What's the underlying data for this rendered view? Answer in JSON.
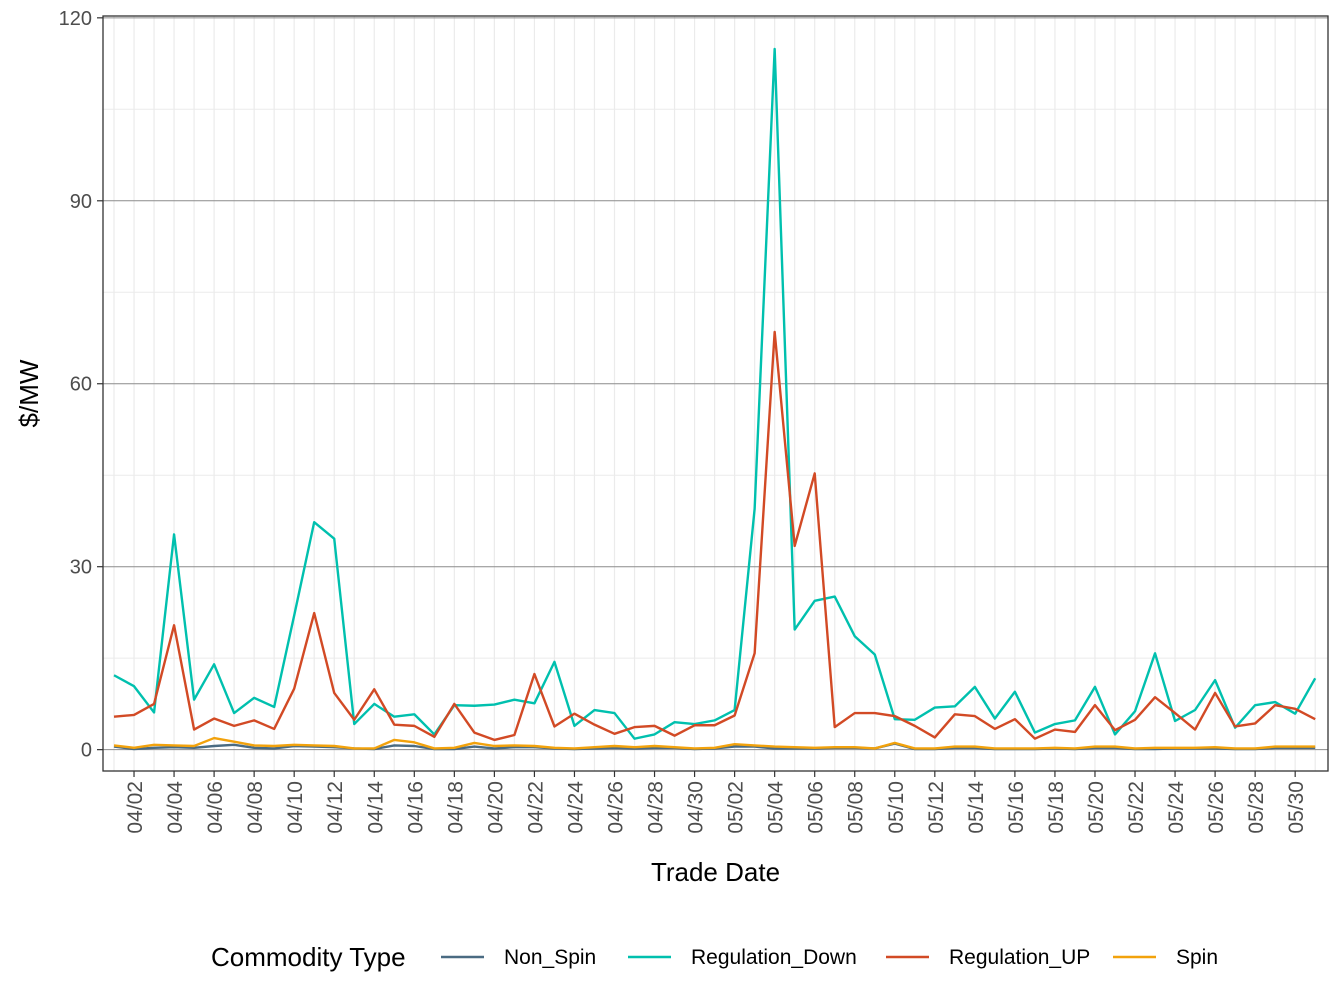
{
  "chart_data": {
    "type": "line",
    "xlabel": "Trade Date",
    "ylabel": "$/MW",
    "ylim": [
      -3.5,
      120.3
    ],
    "yticks": [
      0,
      30,
      60,
      90,
      120
    ],
    "grid": true,
    "legend_position": "bottom",
    "legend_title": "Commodity Type",
    "x": [
      "04/01",
      "04/02",
      "04/03",
      "04/04",
      "04/05",
      "04/06",
      "04/07",
      "04/08",
      "04/09",
      "04/10",
      "04/11",
      "04/12",
      "04/13",
      "04/14",
      "04/15",
      "04/16",
      "04/17",
      "04/18",
      "04/19",
      "04/20",
      "04/21",
      "04/22",
      "04/23",
      "04/24",
      "04/25",
      "04/26",
      "04/27",
      "04/28",
      "04/29",
      "04/30",
      "05/01",
      "05/02",
      "05/03",
      "05/04",
      "05/05",
      "05/06",
      "05/07",
      "05/08",
      "05/09",
      "05/10",
      "05/11",
      "05/12",
      "05/13",
      "05/14",
      "05/15",
      "05/16",
      "05/17",
      "05/18",
      "05/19",
      "05/20",
      "05/21",
      "05/22",
      "05/23",
      "05/24",
      "05/25",
      "05/26",
      "05/27",
      "05/28",
      "05/29",
      "05/30",
      "05/31"
    ],
    "x_tick_labels": [
      "04/02",
      "04/04",
      "04/06",
      "04/08",
      "04/10",
      "04/12",
      "04/14",
      "04/16",
      "04/18",
      "04/20",
      "04/22",
      "04/24",
      "04/26",
      "04/28",
      "04/30",
      "05/02",
      "05/04",
      "05/06",
      "05/08",
      "05/10",
      "05/12",
      "05/14",
      "05/16",
      "05/18",
      "05/20",
      "05/22",
      "05/24",
      "05/26",
      "05/28",
      "05/30"
    ],
    "series": [
      {
        "name": "Non_Spin",
        "color": "#4a6b82",
        "values": [
          0.5,
          0.1,
          0.3,
          0.4,
          0.3,
          0.6,
          0.8,
          0.3,
          0.2,
          0.6,
          0.5,
          0.4,
          0.2,
          0.1,
          0.7,
          0.6,
          0.1,
          0.1,
          0.5,
          0.2,
          0.4,
          0.4,
          0.2,
          0.1,
          0.2,
          0.3,
          0.2,
          0.3,
          0.3,
          0.1,
          0.2,
          0.5,
          0.5,
          0.2,
          0.2,
          0.2,
          0.3,
          0.3,
          0.2,
          1.0,
          0.1,
          0.1,
          0.3,
          0.3,
          0.1,
          0.1,
          0.1,
          0.2,
          0.1,
          0.3,
          0.3,
          0.1,
          0.1,
          0.2,
          0.2,
          0.2,
          0.1,
          0.1,
          0.3,
          0.3,
          0.3
        ]
      },
      {
        "name": "Regulation_Down",
        "color": "#00c0ae",
        "values": [
          12.2,
          10.4,
          6.1,
          35.3,
          8.2,
          14.0,
          6.0,
          8.5,
          7.0,
          22.0,
          37.3,
          34.6,
          4.2,
          7.5,
          5.4,
          5.8,
          2.5,
          7.3,
          7.2,
          7.4,
          8.2,
          7.6,
          14.4,
          3.9,
          6.5,
          6.0,
          1.8,
          2.5,
          4.5,
          4.2,
          4.8,
          6.5,
          39.5,
          114.9,
          19.7,
          24.4,
          25.1,
          18.6,
          15.6,
          5.0,
          4.9,
          6.9,
          7.1,
          10.3,
          5.1,
          9.5,
          2.8,
          4.2,
          4.8,
          10.3,
          2.5,
          6.3,
          15.8,
          4.7,
          6.5,
          11.4,
          3.6,
          7.3,
          7.8,
          5.9,
          11.7
        ]
      },
      {
        "name": "Regulation_UP",
        "color": "#d24a25",
        "values": [
          5.4,
          5.7,
          7.5,
          20.4,
          3.3,
          5.1,
          3.9,
          4.8,
          3.4,
          10.0,
          22.4,
          9.3,
          4.9,
          9.9,
          4.1,
          3.9,
          2.1,
          7.5,
          2.8,
          1.6,
          2.4,
          12.4,
          3.8,
          5.9,
          4.1,
          2.6,
          3.7,
          3.9,
          2.3,
          4.0,
          4.0,
          5.6,
          15.8,
          68.5,
          33.4,
          45.3,
          3.7,
          6.0,
          6.0,
          5.5,
          3.9,
          2.0,
          5.8,
          5.5,
          3.4,
          5.0,
          1.8,
          3.3,
          2.9,
          7.3,
          3.2,
          4.9,
          8.6,
          6.0,
          3.3,
          9.3,
          3.8,
          4.3,
          7.3,
          6.7,
          5.0
        ]
      },
      {
        "name": "Spin",
        "color": "#f2a20c",
        "values": [
          0.7,
          0.3,
          0.8,
          0.7,
          0.6,
          1.9,
          1.3,
          0.7,
          0.6,
          0.8,
          0.7,
          0.6,
          0.2,
          0.2,
          1.6,
          1.2,
          0.2,
          0.3,
          1.1,
          0.6,
          0.7,
          0.6,
          0.3,
          0.2,
          0.4,
          0.6,
          0.4,
          0.6,
          0.4,
          0.2,
          0.3,
          0.9,
          0.7,
          0.5,
          0.4,
          0.3,
          0.4,
          0.4,
          0.2,
          1.1,
          0.2,
          0.2,
          0.5,
          0.5,
          0.2,
          0.2,
          0.2,
          0.3,
          0.2,
          0.5,
          0.5,
          0.2,
          0.3,
          0.3,
          0.3,
          0.4,
          0.2,
          0.2,
          0.5,
          0.5,
          0.5
        ]
      }
    ]
  }
}
